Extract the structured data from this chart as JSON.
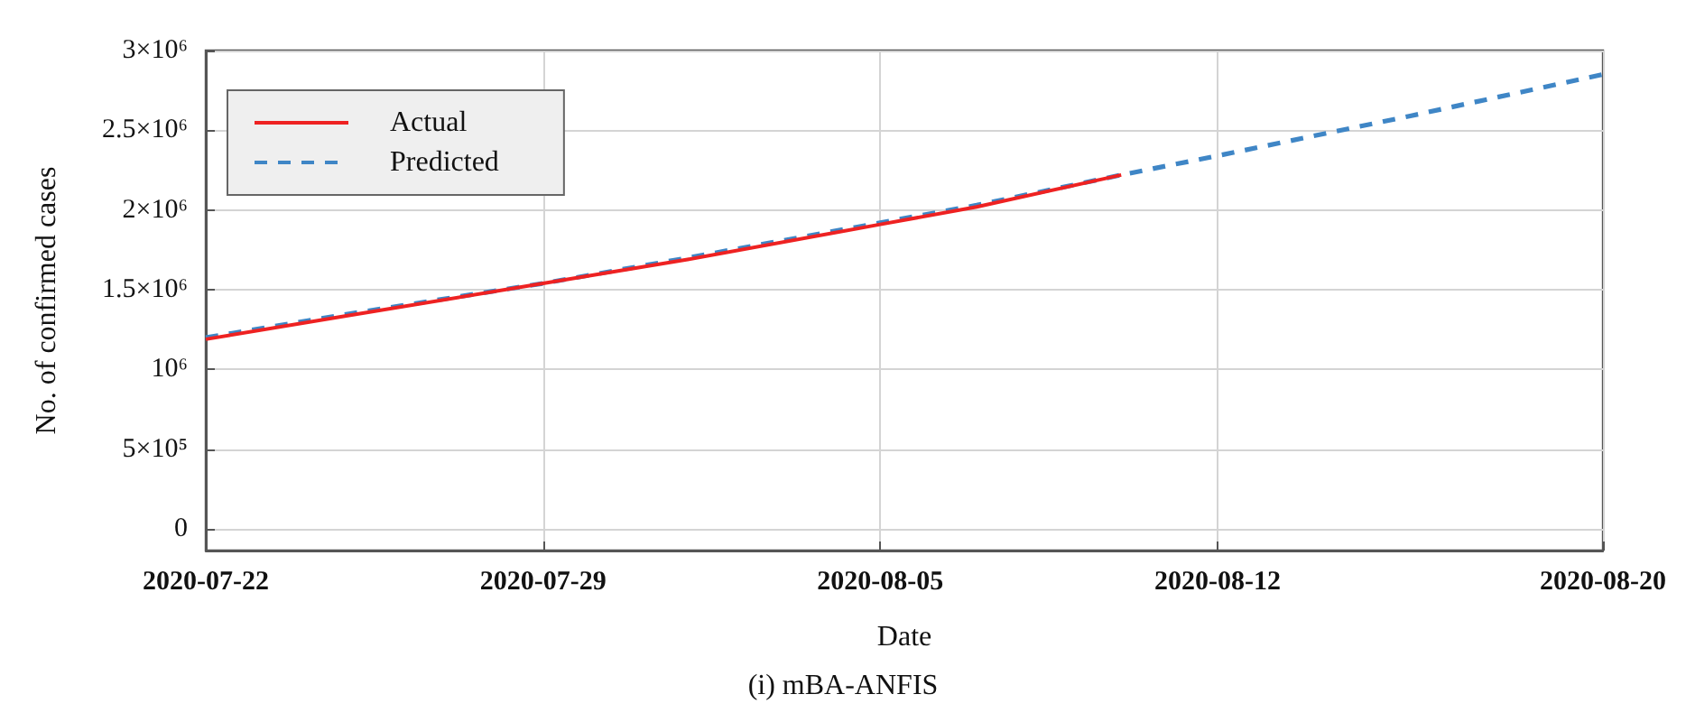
{
  "chart_data": {
    "type": "line",
    "xlabel": "Date",
    "ylabel": "No. of confirmed cases",
    "annotations": [
      "(i) mBA-ANFIS"
    ],
    "series": [
      {
        "name": "Actual",
        "color": "#ee2222",
        "line_style": "solid",
        "x": [
          "2020-07-22",
          "2020-07-25",
          "2020-07-29",
          "2020-08-01",
          "2020-08-05",
          "2020-08-07",
          "2020-08-10"
        ],
        "values": [
          1190000,
          1340000,
          1540000,
          1690000,
          1910000,
          2020000,
          2220000
        ]
      },
      {
        "name": "Predicted",
        "color": "#3f86c6",
        "line_style": "dashed",
        "x": [
          "2020-07-22",
          "2020-07-25",
          "2020-07-29",
          "2020-08-01",
          "2020-08-05",
          "2020-08-07",
          "2020-08-10",
          "2020-08-12",
          "2020-08-16",
          "2020-08-20"
        ],
        "values": [
          1200000,
          1350000,
          1540000,
          1700000,
          1920000,
          2030000,
          2220000,
          2340000,
          2590000,
          2850000
        ]
      }
    ],
    "xlim": [
      "2020-07-22",
      "2020-08-20"
    ],
    "xticks": [
      "2020-07-22",
      "2020-07-29",
      "2020-08-05",
      "2020-08-12",
      "2020-08-20"
    ],
    "ylim": [
      -135000,
      3000000
    ],
    "yticks": [
      {
        "value": 0,
        "label": "0"
      },
      {
        "value": 500000,
        "label": "5×10⁵"
      },
      {
        "value": 1000000,
        "label": "10⁶"
      },
      {
        "value": 1500000,
        "label": "1.5×10⁶"
      },
      {
        "value": 2000000,
        "label": "2×10⁶"
      },
      {
        "value": 2500000,
        "label": "2.5×10⁶"
      },
      {
        "value": 3000000,
        "label": "3×10⁶"
      }
    ],
    "grid": true,
    "legend": "top left",
    "marker": "none"
  }
}
